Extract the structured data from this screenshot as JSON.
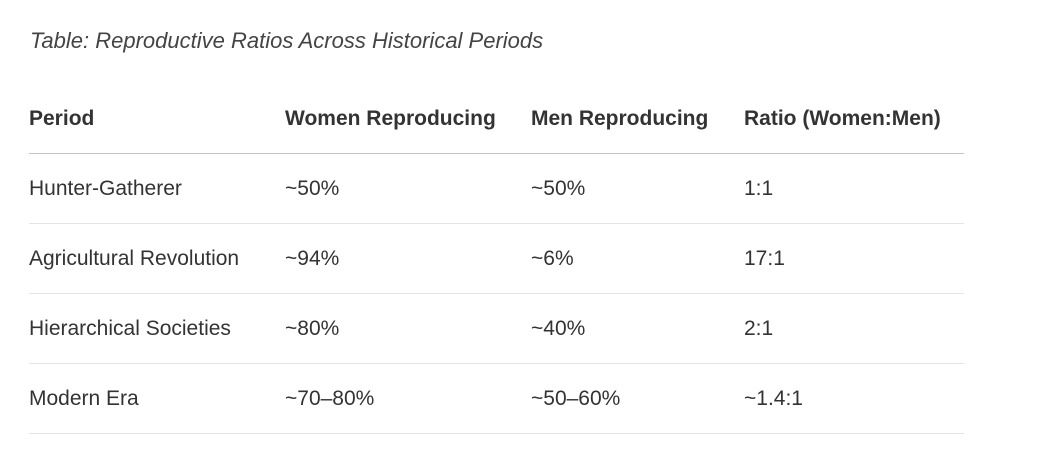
{
  "caption": "Table: Reproductive Ratios Across Historical Periods",
  "table": {
    "headers": [
      "Period",
      "Women Reproducing",
      "Men Reproducing",
      "Ratio (Women:Men)"
    ],
    "rows": [
      [
        "Hunter-Gatherer",
        "~50%",
        "~50%",
        "1:1"
      ],
      [
        "Agricultural Revolution",
        "~94%",
        "~6%",
        "17:1"
      ],
      [
        "Hierarchical Societies",
        "~80%",
        "~40%",
        "2:1"
      ],
      [
        "Modern Era",
        "~70–80%",
        "~50–60%",
        "~1.4:1"
      ]
    ]
  }
}
